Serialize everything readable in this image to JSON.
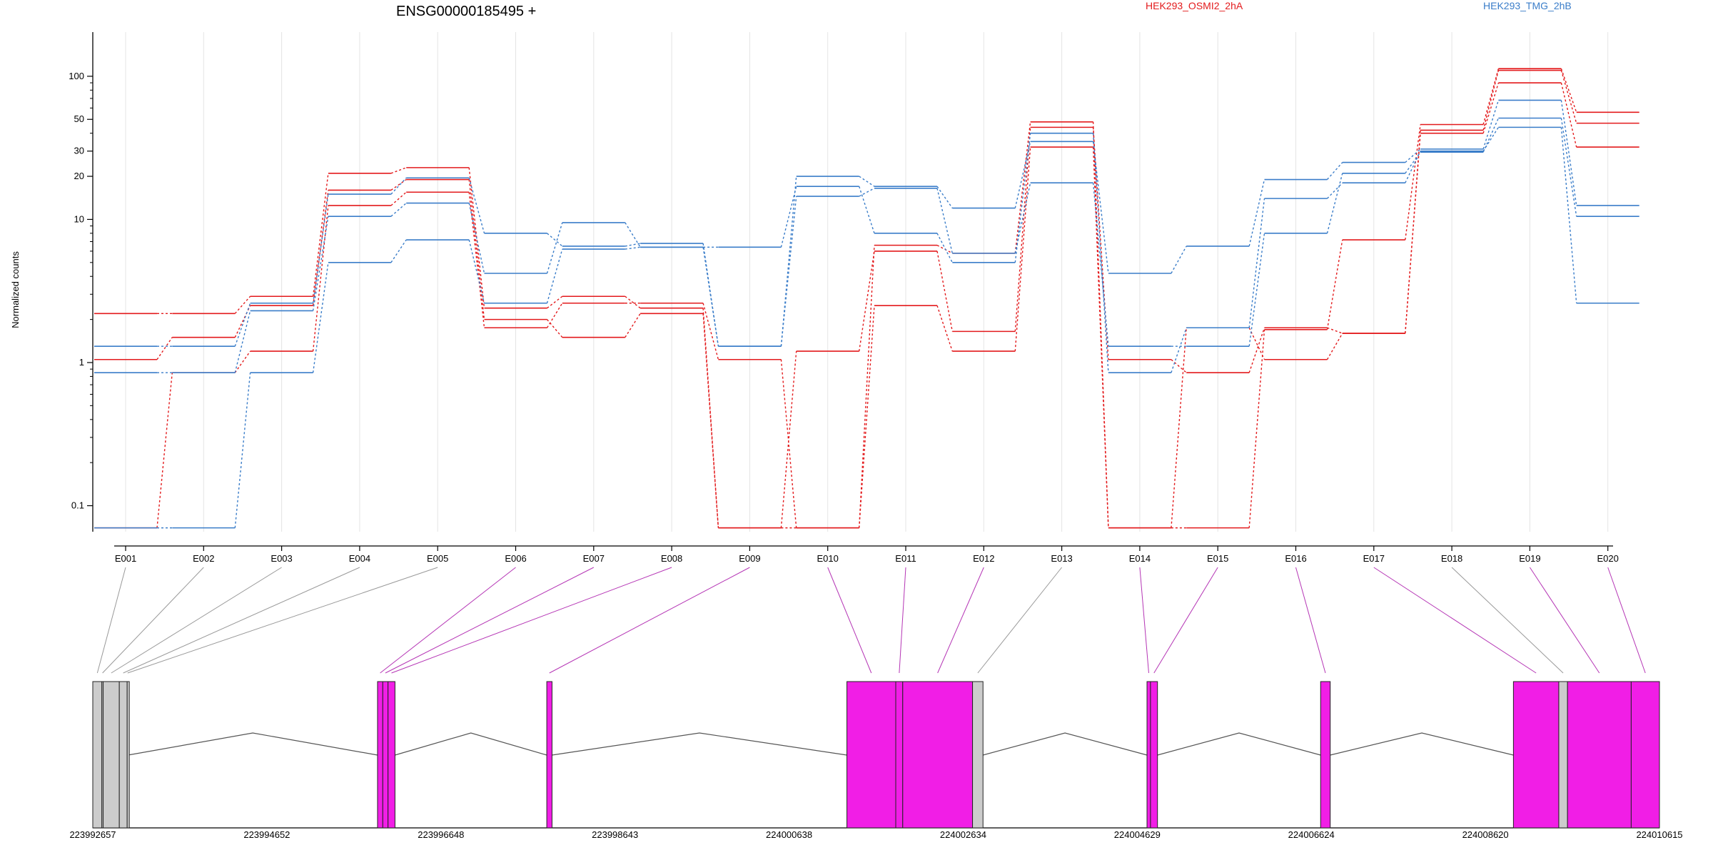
{
  "chart_data": {
    "type": "line",
    "title": "ENSG00000185495 +",
    "ylabel": "Normalized counts",
    "xlabel": "",
    "y_scale": "log",
    "ylim": [
      0.08,
      130
    ],
    "y_ticks": [
      0.1,
      1,
      10,
      20,
      30,
      50,
      100
    ],
    "y_tick_labels": [
      "0.1",
      "1",
      "10",
      "20",
      "30",
      "50",
      "100"
    ],
    "grid": "vertical",
    "legend_placement": "top-right",
    "categories": [
      "E001",
      "E002",
      "E003",
      "E004",
      "E005",
      "E006",
      "E007",
      "E008",
      "E009",
      "E010",
      "E011",
      "E012",
      "E013",
      "E014",
      "E015",
      "E016",
      "E017",
      "E018",
      "E019",
      "E020"
    ],
    "series": [
      {
        "name": "HEK293_OSMI2_2hA",
        "color": "#e31a1c",
        "values": [
          2.2,
          2.2,
          2.9,
          21,
          23,
          2.4,
          2.9,
          2.4,
          0.07,
          0.07,
          6.6,
          5.8,
          48,
          0.07,
          0.07,
          1.7,
          7.2,
          46,
          113,
          56
        ]
      },
      {
        "name": "HEK293_OSMI2_2hA",
        "color": "#e31a1c",
        "values": [
          1.05,
          1.5,
          2.5,
          16,
          19,
          2.0,
          1.5,
          2.2,
          0.07,
          1.2,
          6.0,
          1.65,
          44,
          1.05,
          0.85,
          1.75,
          1.6,
          42,
          110,
          47
        ]
      },
      {
        "name": "HEK293_OSMI2_2hA",
        "color": "#e31a1c",
        "values": [
          0.07,
          0.85,
          1.2,
          12.5,
          15.5,
          1.75,
          2.6,
          2.6,
          1.05,
          0.07,
          2.5,
          1.2,
          32,
          0.07,
          1.75,
          1.05,
          1.6,
          40,
          90,
          32
        ]
      },
      {
        "name": "HEK293_TMG_2hB",
        "color": "#3a7dc9",
        "values": [
          1.3,
          1.3,
          2.6,
          15,
          19.5,
          8,
          6.5,
          6.8,
          1.3,
          20,
          17,
          12,
          35,
          4.2,
          6.5,
          19,
          25,
          31,
          68,
          12.5
        ]
      },
      {
        "name": "HEK293_TMG_2hB",
        "color": "#3a7dc9",
        "values": [
          0.85,
          0.85,
          2.3,
          10.5,
          13,
          4.2,
          9.5,
          6.4,
          1.3,
          14.5,
          16.5,
          5.8,
          18,
          1.3,
          1.3,
          8,
          21,
          29.5,
          51,
          10.5
        ]
      },
      {
        "name": "HEK293_TMG_2hB",
        "color": "#3a7dc9",
        "values": [
          0.07,
          0.07,
          0.85,
          5,
          7.2,
          2.6,
          6.2,
          6.4,
          6.4,
          17,
          8,
          5,
          40,
          0.85,
          1.75,
          14,
          18,
          30,
          44,
          2.6
        ]
      }
    ],
    "legend": [
      {
        "label": "HEK293_OSMI2_2hA",
        "color": "#e31a1c"
      },
      {
        "label": "HEK293_TMG_2hB",
        "color": "#3a7dc9"
      }
    ],
    "gene_model": {
      "coordinate_ticks": [
        "223992657",
        "223994652",
        "223996648",
        "223998643",
        "224000638",
        "224002634",
        "224004629",
        "224006624",
        "224008620",
        "224010615"
      ],
      "coordinate_range": [
        223992657,
        224010615
      ],
      "exon_bins": [
        {
          "id": "E001",
          "start": 223992657,
          "end": 223992761,
          "color": "#cccccc"
        },
        {
          "id": "E002",
          "start": 223992761,
          "end": 223992776,
          "color": "#cccccc"
        },
        {
          "id": "E003",
          "start": 223992776,
          "end": 223992961,
          "color": "#cccccc"
        },
        {
          "id": "E004",
          "start": 223992961,
          "end": 223993051,
          "color": "#cccccc"
        },
        {
          "id": "E005",
          "start": 223993051,
          "end": 223993061,
          "color": "#cccccc"
        },
        {
          "id": "E006",
          "start": 223995921,
          "end": 223995981,
          "color": "#f11ee6"
        },
        {
          "id": "E007",
          "start": 223995981,
          "end": 223996041,
          "color": "#f11ee6"
        },
        {
          "id": "E008",
          "start": 223996041,
          "end": 223996121,
          "color": "#f11ee6"
        },
        {
          "id": "E009",
          "start": 223997861,
          "end": 223997921,
          "color": "#f11ee6"
        },
        {
          "id": "E010",
          "start": 224001301,
          "end": 224001861,
          "color": "#f11ee6"
        },
        {
          "id": "E011",
          "start": 224001861,
          "end": 224001941,
          "color": "#f11ee6"
        },
        {
          "id": "E012",
          "start": 224001941,
          "end": 224002741,
          "color": "#f11ee6"
        },
        {
          "id": "E013",
          "start": 224002741,
          "end": 224002861,
          "color": "#cccccc"
        },
        {
          "id": "E014",
          "start": 224004741,
          "end": 224004781,
          "color": "#f11ee6"
        },
        {
          "id": "E015",
          "start": 224004781,
          "end": 224004861,
          "color": "#f11ee6"
        },
        {
          "id": "E016",
          "start": 224006731,
          "end": 224006841,
          "color": "#f11ee6"
        },
        {
          "id": "E017",
          "start": 224008941,
          "end": 224009461,
          "color": "#f11ee6"
        },
        {
          "id": "E018",
          "start": 224009461,
          "end": 224009561,
          "color": "#cccccc"
        },
        {
          "id": "E019",
          "start": 224009561,
          "end": 224010291,
          "color": "#f11ee6"
        },
        {
          "id": "E020",
          "start": 224010291,
          "end": 224010615,
          "color": "#f11ee6"
        }
      ],
      "connector_colors": {
        "grey": "#999999",
        "magenta": "#b535b5"
      },
      "intron_color": "#555555"
    }
  }
}
